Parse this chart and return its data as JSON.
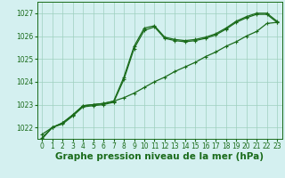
{
  "xlabel": "Graphe pression niveau de la mer (hPa)",
  "hours": [
    0,
    1,
    2,
    3,
    4,
    5,
    6,
    7,
    8,
    9,
    10,
    11,
    12,
    13,
    14,
    15,
    16,
    17,
    18,
    19,
    20,
    21,
    22,
    23
  ],
  "straight": [
    1021.7,
    1022.0,
    1022.2,
    1022.55,
    1022.95,
    1023.0,
    1023.05,
    1023.15,
    1023.3,
    1023.5,
    1023.75,
    1024.0,
    1024.2,
    1024.45,
    1024.65,
    1024.85,
    1025.1,
    1025.3,
    1025.55,
    1025.75,
    1026.0,
    1026.2,
    1026.55,
    1026.6
  ],
  "upper1": [
    1021.55,
    1022.0,
    1022.2,
    1022.55,
    1022.95,
    1023.0,
    1023.05,
    1023.15,
    1024.2,
    1025.55,
    1026.35,
    1026.45,
    1025.95,
    1025.85,
    1025.8,
    1025.85,
    1025.95,
    1026.1,
    1026.35,
    1026.65,
    1026.85,
    1027.0,
    1027.0,
    1026.65
  ],
  "upper2": [
    1021.5,
    1022.0,
    1022.15,
    1022.5,
    1022.9,
    1022.95,
    1023.0,
    1023.1,
    1024.1,
    1025.45,
    1026.25,
    1026.4,
    1025.9,
    1025.8,
    1025.75,
    1025.8,
    1025.9,
    1026.05,
    1026.3,
    1026.6,
    1026.8,
    1026.95,
    1026.95,
    1026.6
  ],
  "line_color": "#1a6b1a",
  "bg_color": "#d4f0f0",
  "grid_color": "#9ecfbf",
  "ylim_min": 1021.5,
  "ylim_max": 1027.5,
  "yticks": [
    1022,
    1023,
    1024,
    1025,
    1026,
    1027
  ],
  "xticks": [
    0,
    1,
    2,
    3,
    4,
    5,
    6,
    7,
    8,
    9,
    10,
    11,
    12,
    13,
    14,
    15,
    16,
    17,
    18,
    19,
    20,
    21,
    22,
    23
  ],
  "xlabel_fontsize": 7.5,
  "tick_fontsize": 5.5,
  "line_width": 0.9,
  "marker_size": 2.5
}
